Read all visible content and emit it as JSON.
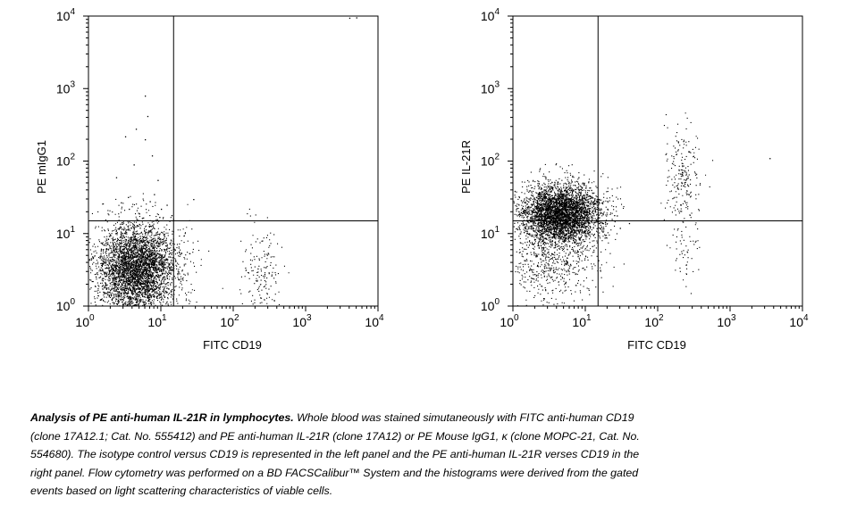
{
  "chart_data": [
    {
      "type": "scatter",
      "panel": "left",
      "title": "",
      "xlabel": "FITC CD19",
      "ylabel": "PE mIgG1",
      "xscale": "log",
      "yscale": "log",
      "xlim": [
        1,
        10000
      ],
      "ylim": [
        1,
        10000
      ],
      "xticks": [
        {
          "base": "10",
          "exp": "0"
        },
        {
          "base": "10",
          "exp": "1"
        },
        {
          "base": "10",
          "exp": "2"
        },
        {
          "base": "10",
          "exp": "3"
        },
        {
          "base": "10",
          "exp": "4"
        }
      ],
      "yticks": [
        {
          "base": "10",
          "exp": "0"
        },
        {
          "base": "10",
          "exp": "1"
        },
        {
          "base": "10",
          "exp": "2"
        },
        {
          "base": "10",
          "exp": "3"
        },
        {
          "base": "10",
          "exp": "4"
        }
      ],
      "quadrant_gate": {
        "x": 15,
        "y": 15
      },
      "grid": false,
      "populations": [
        {
          "center_x": 4.5,
          "center_y": 3.2,
          "log_sd_x": 0.28,
          "log_sd_y": 0.32,
          "events": 4200,
          "quadrant": "lower-left"
        },
        {
          "center_x": 230,
          "center_y": 3.0,
          "log_sd_x": 0.14,
          "log_sd_y": 0.38,
          "events": 170,
          "quadrant": "lower-right"
        }
      ],
      "sparse_events": [
        [
          6,
          800
        ],
        [
          6.5,
          420
        ],
        [
          4.5,
          280
        ],
        [
          3.2,
          220
        ],
        [
          7.5,
          120
        ],
        [
          9,
          55
        ],
        [
          3.5,
          32
        ],
        [
          7,
          28
        ],
        [
          10,
          22
        ],
        [
          28,
          30
        ],
        [
          6,
          200
        ],
        [
          4.2,
          90
        ],
        [
          2.4,
          60
        ],
        [
          14,
          18
        ],
        [
          12,
          25
        ],
        [
          8,
          35
        ],
        [
          4000,
          9500
        ],
        [
          5000,
          9600
        ],
        [
          3.6,
          22
        ],
        [
          5,
          19
        ],
        [
          9.5,
          17
        ],
        [
          2.8,
          27
        ]
      ]
    },
    {
      "type": "scatter",
      "panel": "right",
      "title": "",
      "xlabel": "FITC CD19",
      "ylabel": "PE IL-21R",
      "xscale": "log",
      "yscale": "log",
      "xlim": [
        1,
        10000
      ],
      "ylim": [
        1,
        10000
      ],
      "xticks": [
        {
          "base": "10",
          "exp": "0"
        },
        {
          "base": "10",
          "exp": "1"
        },
        {
          "base": "10",
          "exp": "2"
        },
        {
          "base": "10",
          "exp": "3"
        },
        {
          "base": "10",
          "exp": "4"
        }
      ],
      "yticks": [
        {
          "base": "10",
          "exp": "0"
        },
        {
          "base": "10",
          "exp": "1"
        },
        {
          "base": "10",
          "exp": "2"
        },
        {
          "base": "10",
          "exp": "3"
        },
        {
          "base": "10",
          "exp": "4"
        }
      ],
      "quadrant_gate": {
        "x": 15,
        "y": 15
      },
      "grid": false,
      "populations": [
        {
          "center_x": 4.5,
          "center_y": 19,
          "log_sd_x": 0.27,
          "log_sd_y": 0.2,
          "events": 4000,
          "quadrant": "upper-left"
        },
        {
          "center_x": 3.5,
          "center_y": 4.5,
          "log_sd_x": 0.32,
          "log_sd_y": 0.3,
          "events": 650,
          "quadrant": "lower-left"
        },
        {
          "center_x": 220,
          "center_y": 60,
          "log_sd_x": 0.13,
          "log_sd_y": 0.28,
          "events": 210,
          "quadrant": "upper-right"
        },
        {
          "center_x": 240,
          "center_y": 7,
          "log_sd_x": 0.12,
          "log_sd_y": 0.3,
          "events": 60,
          "quadrant": "lower-right"
        }
      ],
      "sparse_events": [
        [
          3500,
          110
        ],
        [
          12,
          40
        ],
        [
          20,
          22
        ],
        [
          25,
          18
        ],
        [
          15,
          30
        ],
        [
          8,
          60
        ],
        [
          40,
          14
        ],
        [
          30,
          12
        ]
      ]
    }
  ],
  "caption": {
    "bold": "Analysis of PE anti-human IL-21R in lymphocytes.",
    "lines": [
      " Whole blood was stained simutaneously with FITC anti-human CD19",
      "(clone 17A12.1; Cat. No. 555412) and PE anti-human IL-21R  (clone 17A12) or PE Mouse IgG1, κ (clone MOPC-21, Cat. No.",
      "554680).  The isotype control versus CD19 is represented in the left panel and the PE anti-human IL-21R verses CD19 in the",
      "right panel. Flow cytometry was performed on a BD FACSCalibur™ System and the histograms were derived from the gated",
      "events based on light scattering characteristics of viable cells."
    ]
  },
  "colors": {
    "ink": "#000000",
    "background": "#ffffff"
  }
}
